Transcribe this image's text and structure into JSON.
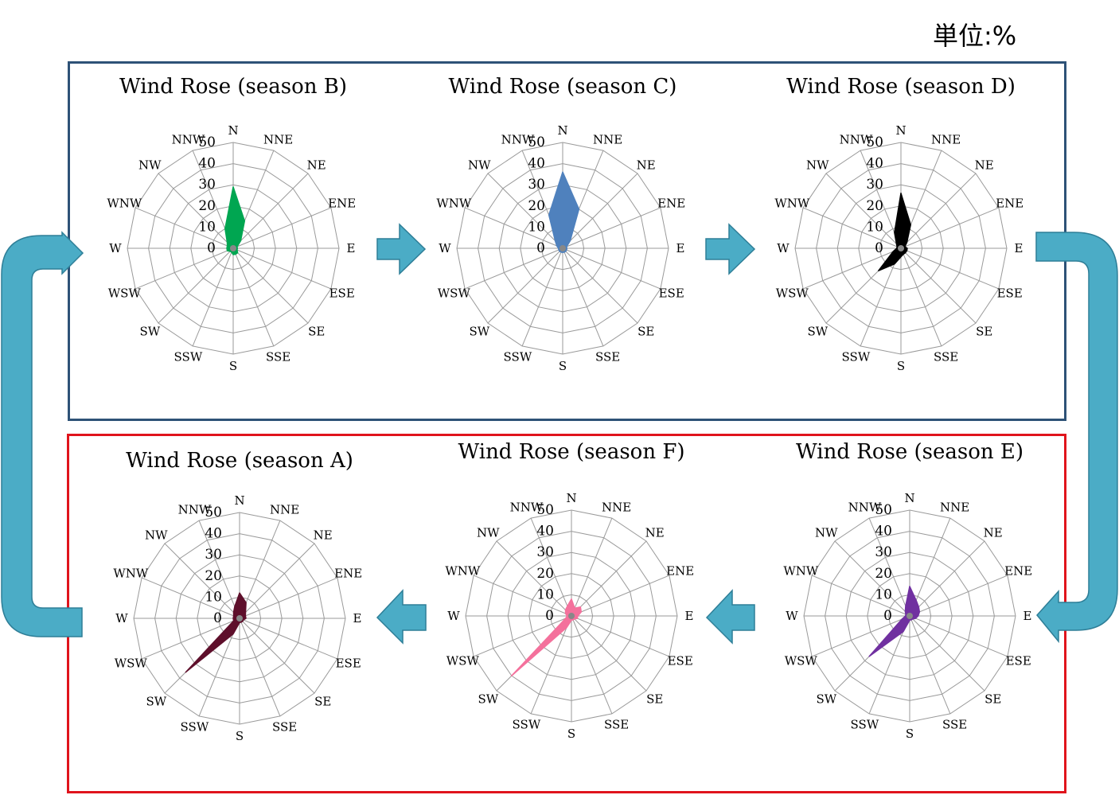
{
  "unit_label": "単位:%",
  "colors": {
    "arrow": "#4bacc6",
    "arrow_stroke": "#2e7e97",
    "top_box": "#2e5277",
    "bottom_box": "#e0141c",
    "grid": "#9a9a9a"
  },
  "chart_data": [
    {
      "type": "radar",
      "title": "Wind Rose (season B)",
      "categories": [
        "N",
        "NNE",
        "NE",
        "ENE",
        "E",
        "ESE",
        "SE",
        "SSE",
        "S",
        "SSW",
        "SW",
        "WSW",
        "W",
        "WNW",
        "NW",
        "NNW"
      ],
      "radial_ticks": [
        "0",
        "10",
        "20",
        "30",
        "40",
        "50"
      ],
      "rlim": [
        0,
        50
      ],
      "series": [
        {
          "color": "#00a651",
          "values": [
            29,
            14,
            5,
            2,
            2,
            2,
            3,
            3,
            3,
            2,
            2,
            3,
            3,
            3,
            4,
            10
          ]
        }
      ]
    },
    {
      "type": "radar",
      "title": "Wind Rose (season C)",
      "categories": [
        "N",
        "NNE",
        "NE",
        "ENE",
        "E",
        "ESE",
        "SE",
        "SSE",
        "S",
        "SSW",
        "SW",
        "WSW",
        "W",
        "WNW",
        "NW",
        "NNW"
      ],
      "radial_ticks": [
        "0",
        "10",
        "20",
        "30",
        "40",
        "50"
      ],
      "rlim": [
        0,
        50
      ],
      "series": [
        {
          "color": "#4f81bd",
          "values": [
            36,
            20,
            5,
            2,
            2,
            2,
            2,
            2,
            2,
            2,
            2,
            2,
            2,
            3,
            5,
            17
          ]
        }
      ]
    },
    {
      "type": "radar",
      "title": "Wind Rose (season D)",
      "categories": [
        "N",
        "NNE",
        "NE",
        "ENE",
        "E",
        "ESE",
        "SE",
        "SSE",
        "S",
        "SSW",
        "SW",
        "WSW",
        "W",
        "WNW",
        "NW",
        "NNW"
      ],
      "radial_ticks": [
        "0",
        "10",
        "20",
        "30",
        "40",
        "50"
      ],
      "rlim": [
        0,
        50
      ],
      "series": [
        {
          "color": "#000000",
          "values": [
            26,
            12,
            4,
            2,
            3,
            3,
            3,
            3,
            4,
            8,
            15,
            4,
            2,
            2,
            3,
            8
          ]
        }
      ]
    },
    {
      "type": "radar",
      "title": "Wind Rose (season A)",
      "categories": [
        "N",
        "NNE",
        "NE",
        "ENE",
        "E",
        "ESE",
        "SE",
        "SSE",
        "S",
        "SSW",
        "SW",
        "WSW",
        "W",
        "WNW",
        "NW",
        "NNW"
      ],
      "radial_ticks": [
        "0",
        "10",
        "20",
        "30",
        "40",
        "50"
      ],
      "rlim": [
        0,
        50
      ],
      "series": [
        {
          "color": "#5e0f2b",
          "values": [
            12,
            8,
            4,
            3,
            3,
            2,
            2,
            2,
            2,
            8,
            36,
            3,
            3,
            3,
            4,
            6
          ]
        }
      ]
    },
    {
      "type": "radar",
      "title": "Wind Rose (season F)",
      "categories": [
        "N",
        "NNE",
        "NE",
        "ENE",
        "E",
        "ESE",
        "SE",
        "SSE",
        "S",
        "SSW",
        "SW",
        "WSW",
        "W",
        "WNW",
        "NW",
        "NNW"
      ],
      "radial_ticks": [
        "0",
        "10",
        "20",
        "30",
        "40",
        "50"
      ],
      "rlim": [
        0,
        50
      ],
      "series": [
        {
          "color": "#f4719c",
          "values": [
            8,
            4,
            6,
            5,
            3,
            3,
            2,
            2,
            2,
            6,
            40,
            3,
            2,
            3,
            4,
            5
          ]
        }
      ]
    },
    {
      "type": "radar",
      "title": "Wind Rose (season E)",
      "categories": [
        "N",
        "NNE",
        "NE",
        "ENE",
        "E",
        "ESE",
        "SE",
        "SSE",
        "S",
        "SSW",
        "SW",
        "WSW",
        "W",
        "WNW",
        "NW",
        "NNW"
      ],
      "radial_ticks": [
        "0",
        "10",
        "20",
        "30",
        "40",
        "50"
      ],
      "rlim": [
        0,
        50
      ],
      "series": [
        {
          "color": "#7030a0",
          "values": [
            14,
            8,
            6,
            5,
            4,
            3,
            2,
            2,
            2,
            8,
            27,
            4,
            2,
            2,
            3,
            5
          ]
        }
      ]
    }
  ]
}
